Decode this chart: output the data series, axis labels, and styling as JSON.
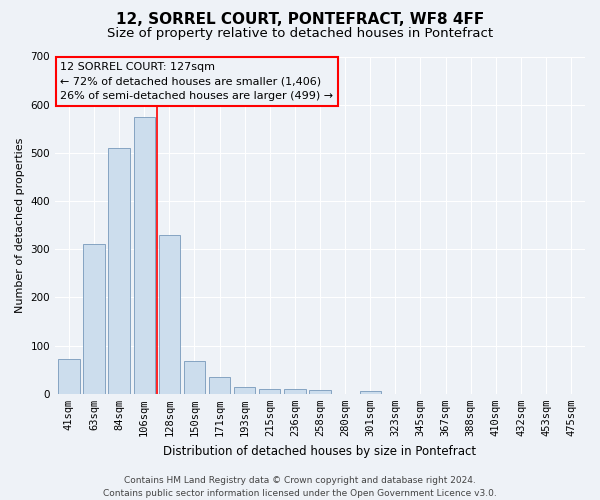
{
  "title": "12, SORREL COURT, PONTEFRACT, WF8 4FF",
  "subtitle": "Size of property relative to detached houses in Pontefract",
  "xlabel": "Distribution of detached houses by size in Pontefract",
  "ylabel": "Number of detached properties",
  "categories": [
    "41sqm",
    "63sqm",
    "84sqm",
    "106sqm",
    "128sqm",
    "150sqm",
    "171sqm",
    "193sqm",
    "215sqm",
    "236sqm",
    "258sqm",
    "280sqm",
    "301sqm",
    "323sqm",
    "345sqm",
    "367sqm",
    "388sqm",
    "410sqm",
    "432sqm",
    "453sqm",
    "475sqm"
  ],
  "values": [
    72,
    310,
    510,
    575,
    330,
    68,
    35,
    15,
    10,
    10,
    8,
    0,
    6,
    0,
    0,
    0,
    0,
    0,
    0,
    0,
    0
  ],
  "bar_color": "#ccdded",
  "bar_edge_color": "#7799bb",
  "red_line_x": 3.5,
  "ylim": [
    0,
    700
  ],
  "yticks": [
    0,
    100,
    200,
    300,
    400,
    500,
    600,
    700
  ],
  "annotation_box_text": "12 SORREL COURT: 127sqm\n← 72% of detached houses are smaller (1,406)\n26% of semi-detached houses are larger (499) →",
  "footer_line1": "Contains HM Land Registry data © Crown copyright and database right 2024.",
  "footer_line2": "Contains public sector information licensed under the Open Government Licence v3.0.",
  "background_color": "#eef2f7",
  "grid_color": "#ffffff",
  "title_fontsize": 11,
  "subtitle_fontsize": 9.5,
  "xlabel_fontsize": 8.5,
  "ylabel_fontsize": 8,
  "tick_fontsize": 7.5,
  "annotation_fontsize": 8,
  "footer_fontsize": 6.5
}
